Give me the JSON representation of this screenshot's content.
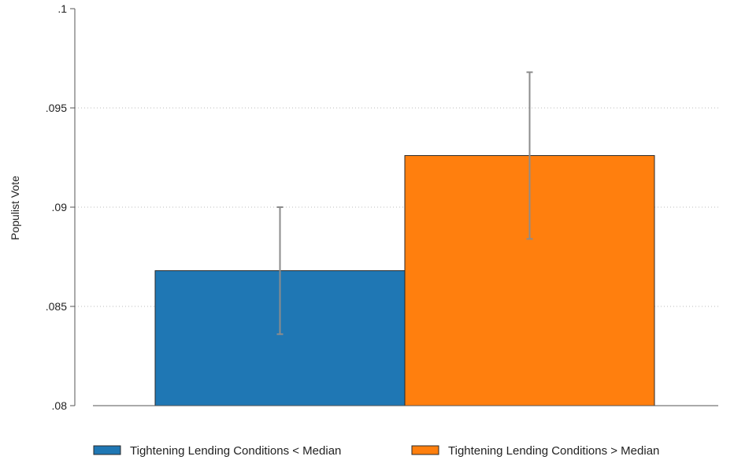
{
  "chart_data": {
    "type": "bar",
    "title": "",
    "xlabel": "",
    "ylabel": "Populist Vote",
    "ylim": [
      0.08,
      0.1
    ],
    "yticks": [
      ".08",
      ".085",
      ".09",
      ".095",
      ".1"
    ],
    "grid": "horizontal dotted",
    "legend_position": "bottom",
    "series": [
      {
        "name": "Tightening Lending Conditions < Median",
        "value": 0.0868,
        "ci": [
          0.0836,
          0.09
        ],
        "color": "#1f77b4"
      },
      {
        "name": "Tightening Lending Conditions > Median",
        "value": 0.0926,
        "ci": [
          0.0884,
          0.0968
        ],
        "color": "#ff7f0e"
      }
    ]
  }
}
